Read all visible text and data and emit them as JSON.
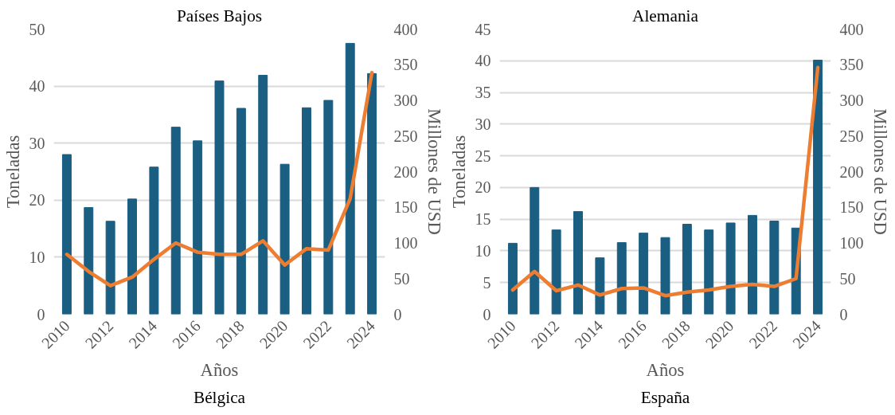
{
  "chart_data": [
    {
      "type": "bar",
      "title": "Países Bajos",
      "xlabel": "Años",
      "ylabel": "Toneladas",
      "y2label": "Millones de USD",
      "annotations": [
        "Bélgica"
      ],
      "categories": [
        "2010",
        null,
        "2012",
        null,
        "2014",
        null,
        "2016",
        null,
        "2018",
        null,
        "2020",
        null,
        "2022",
        null,
        "2024"
      ],
      "series": [
        {
          "color": "#1a5e82",
          "values": [
            28,
            18.7,
            16.3,
            20.2,
            25.8,
            32.8,
            30.4,
            40.9,
            36.1,
            41.9,
            26.3,
            36.2,
            37.5,
            47.5,
            42.2
          ]
        },
        {
          "type": "line",
          "axis": "y2",
          "color": "#ed7d31",
          "values": [
            84,
            60,
            40,
            52,
            77,
            100,
            87,
            84,
            84,
            103,
            69,
            92,
            90,
            162,
            339
          ]
        }
      ],
      "ylim": [
        0,
        50
      ],
      "yticks": [
        0,
        10,
        20,
        30,
        40,
        50
      ],
      "y2lim": [
        0,
        400
      ],
      "y2ticks": [
        0,
        50,
        100,
        150,
        200,
        250,
        300,
        350,
        400
      ],
      "grid": "y",
      "line_style": "solid",
      "marker": "none"
    },
    {
      "type": "bar",
      "title": "Alemania",
      "xlabel": "Años",
      "ylabel": "Toneladas",
      "y2label": "Millones de USD",
      "annotations": [
        "España"
      ],
      "categories": [
        "2010",
        null,
        "2012",
        null,
        "2014",
        null,
        "2016",
        null,
        "2018",
        null,
        "2020",
        null,
        "2022",
        null,
        "2024"
      ],
      "series": [
        {
          "color": "#1a5e82",
          "values": [
            11.2,
            20,
            13.3,
            16.2,
            8.9,
            11.3,
            12.8,
            12.1,
            14.2,
            13.3,
            14.4,
            15.6,
            14.7,
            13.6,
            40.1
          ]
        },
        {
          "type": "line",
          "axis": "y2",
          "color": "#ed7d31",
          "values": [
            34,
            60,
            33,
            41,
            27,
            36,
            37,
            26,
            31,
            34,
            39,
            42,
            39,
            50,
            346
          ]
        }
      ],
      "ylim": [
        0,
        45
      ],
      "yticks": [
        0,
        5,
        10,
        15,
        20,
        25,
        30,
        35,
        40,
        45
      ],
      "y2lim": [
        0,
        400
      ],
      "y2ticks": [
        0,
        50,
        100,
        150,
        200,
        250,
        300,
        350,
        400
      ],
      "grid": "y",
      "line_style": "solid",
      "marker": "none"
    }
  ]
}
